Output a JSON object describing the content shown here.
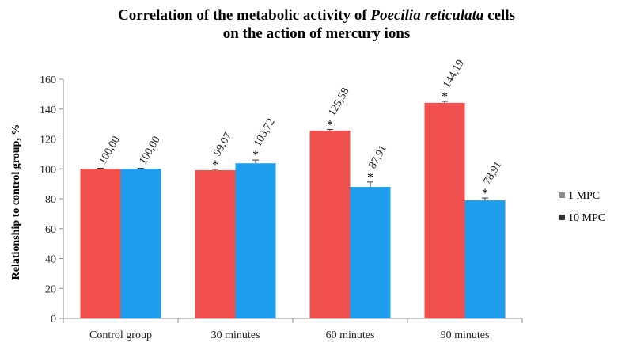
{
  "chart_data": {
    "type": "bar",
    "title_line1_pre": "Correlation of the metabolic activity of ",
    "title_line1_italic": "Poecilia reticulata",
    "title_line1_post": " cells",
    "title_line2": "on the action of mercury ions",
    "ylabel": "Relationship to control group, %",
    "xlabel": "",
    "ylim": [
      0,
      160
    ],
    "yticks": [
      0,
      20,
      40,
      60,
      80,
      100,
      120,
      140,
      160
    ],
    "categories": [
      "Control  group",
      "30 minutes",
      "60 minutes",
      "90 minutes"
    ],
    "series": [
      {
        "name": "1 MPC",
        "color": "#f0514f",
        "values": [
          100.0,
          99.07,
          125.58,
          144.19
        ],
        "labels": [
          "100,00",
          "99,07",
          "125,58",
          "144,19"
        ],
        "errors": [
          0.4,
          0.6,
          0.8,
          1.0
        ],
        "significant": [
          false,
          true,
          true,
          true
        ]
      },
      {
        "name": "10 MPC",
        "color": "#1f9ded",
        "values": [
          100.0,
          103.72,
          87.91,
          78.91
        ],
        "labels": [
          "100,00",
          "103,72",
          "87,91",
          "78,91"
        ],
        "errors": [
          0.4,
          2.2,
          3.3,
          1.6
        ],
        "significant": [
          false,
          true,
          true,
          true
        ]
      }
    ],
    "significance_marker": "*",
    "legend_position": "right",
    "grid": false
  }
}
